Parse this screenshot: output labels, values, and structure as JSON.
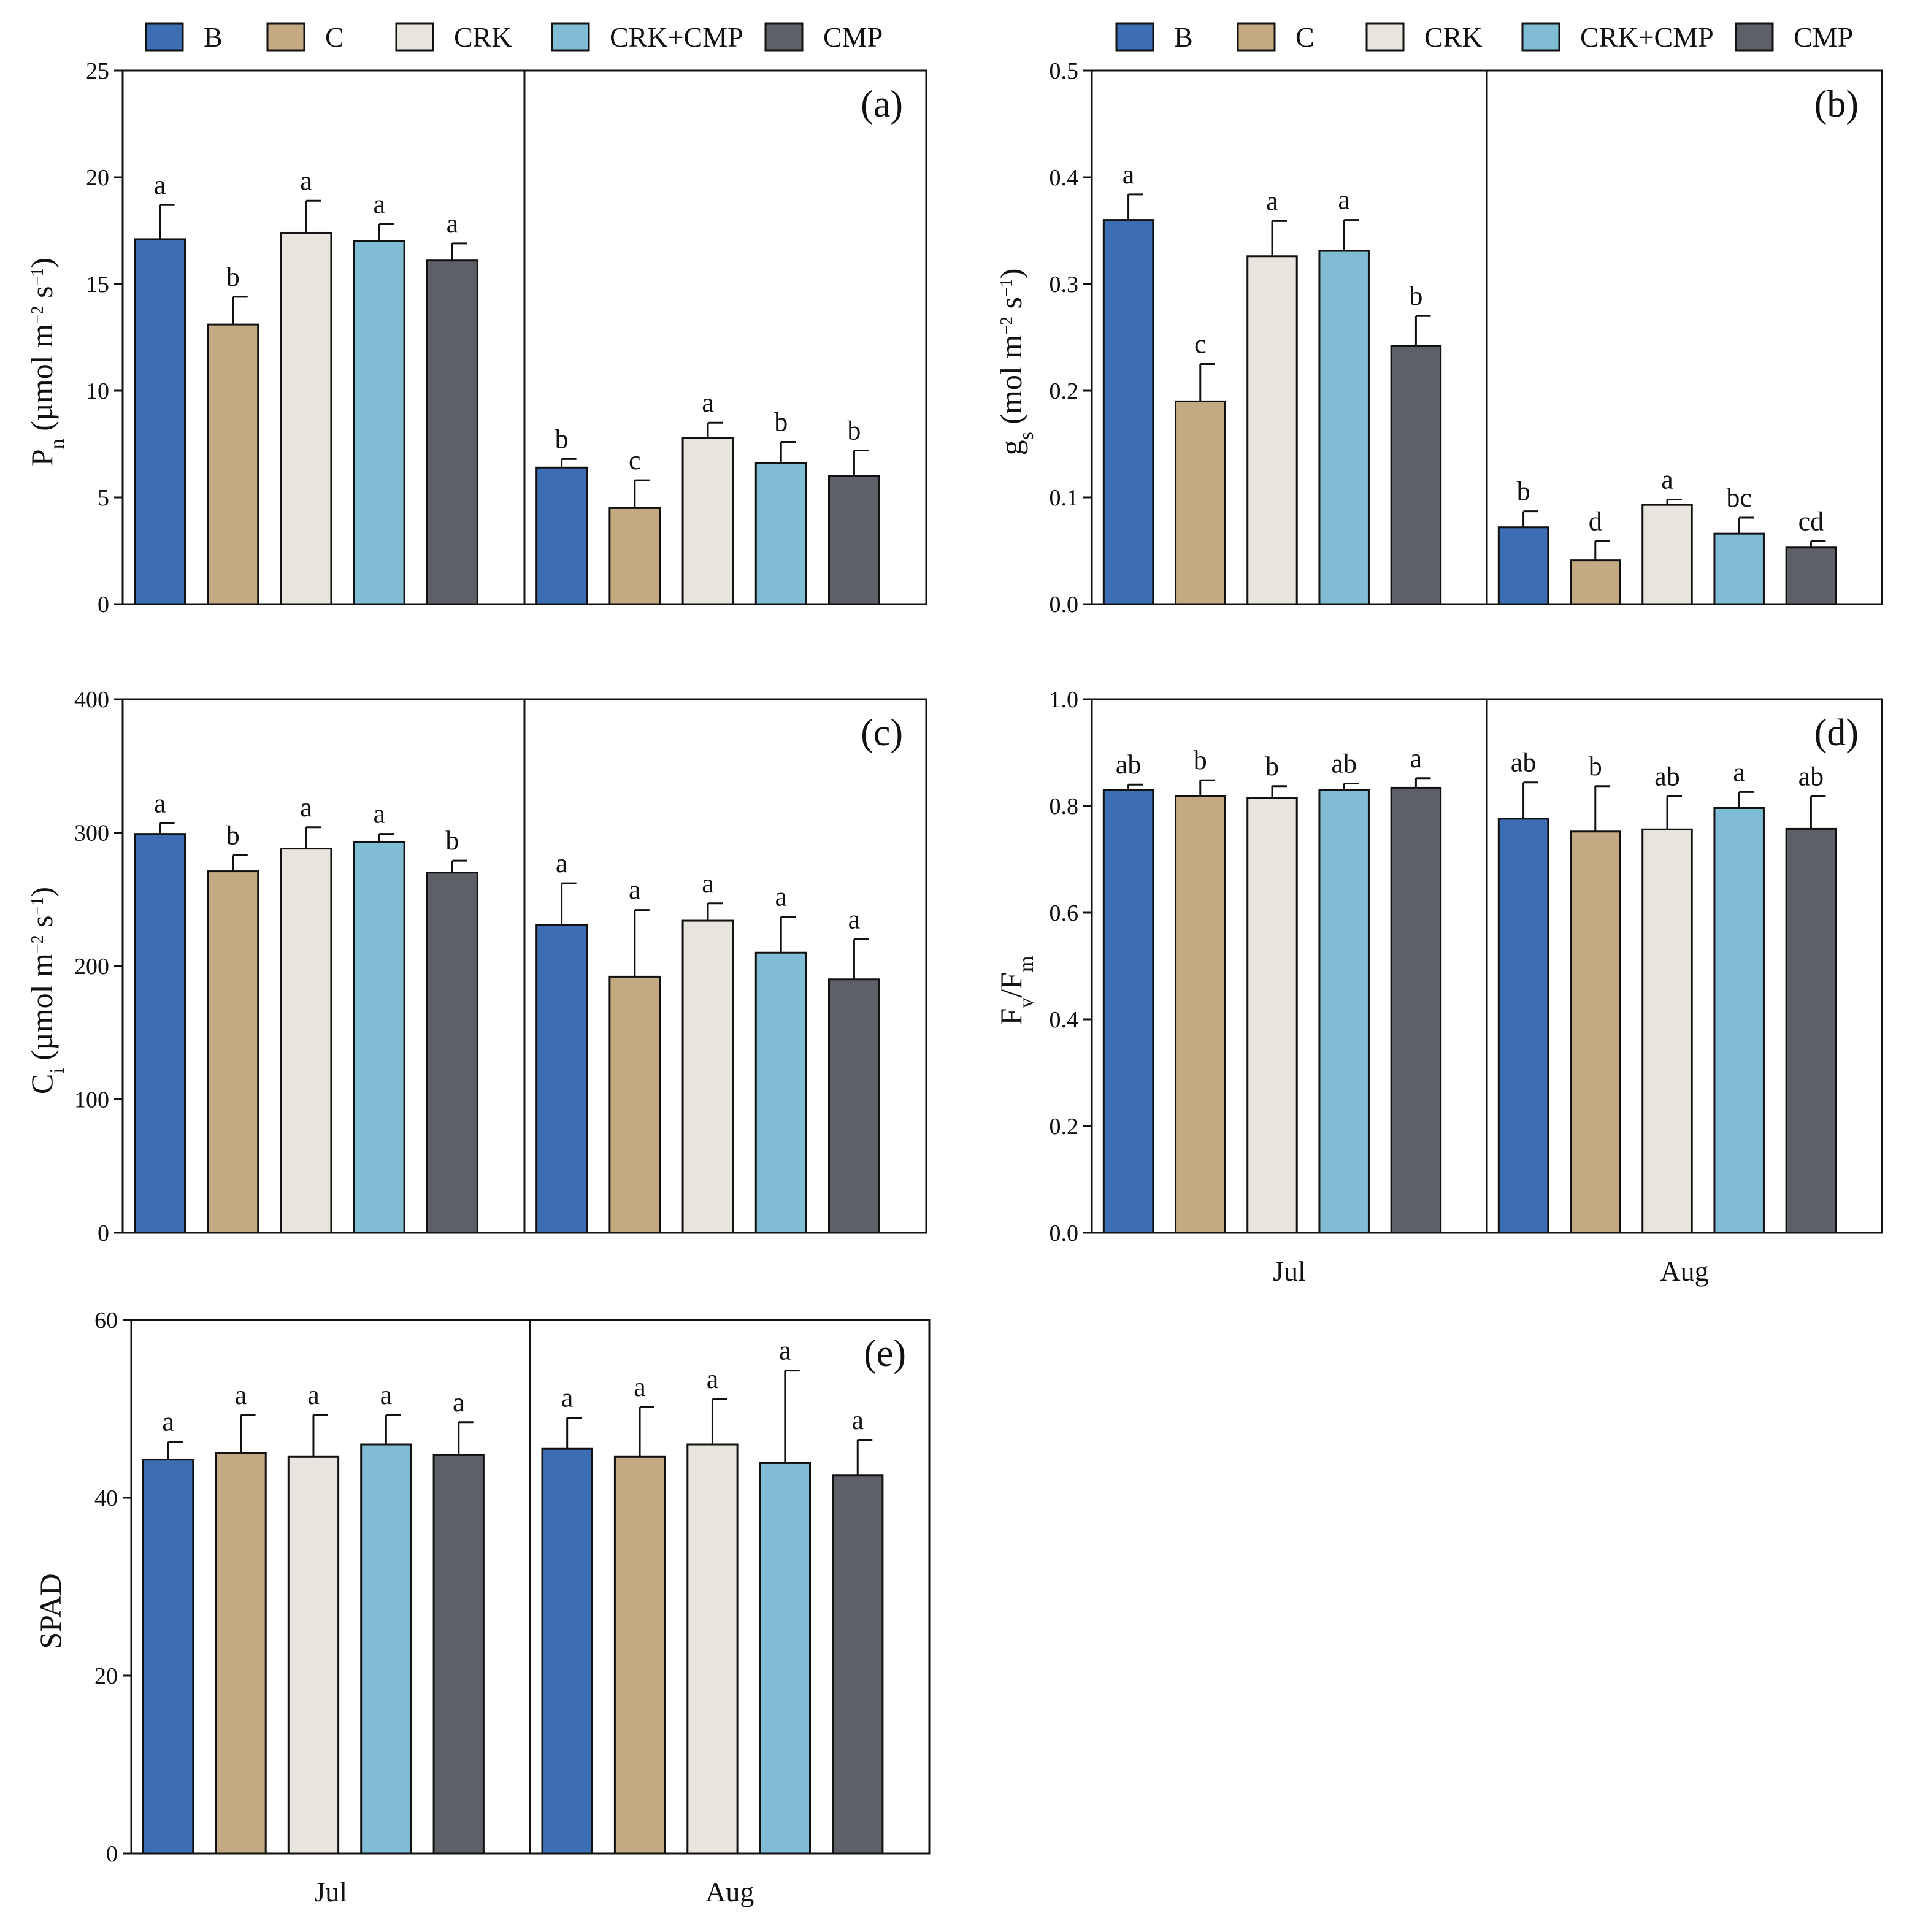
{
  "legend": {
    "items": [
      {
        "label": "B",
        "color": "#3d6db2"
      },
      {
        "label": "C",
        "color": "#c3aa82"
      },
      {
        "label": "CRK",
        "color": "#e8e4de"
      },
      {
        "label": "CRK+CMP",
        "color": "#80bcd3"
      },
      {
        "label": "CMP",
        "color": "#5d6066"
      }
    ]
  },
  "chart_data": [
    {
      "panel": "(a)",
      "type": "bar",
      "ylabel": "Pn (µmol m−2 s−1)",
      "ylabel_parts": [
        {
          "text": "P"
        },
        {
          "text": "n",
          "role": "sub"
        },
        {
          "text": " (µmol m"
        },
        {
          "text": "−2",
          "role": "sup"
        },
        {
          "text": " s"
        },
        {
          "text": "−1",
          "role": "sup"
        },
        {
          "text": ")"
        }
      ],
      "ylim": [
        0,
        25
      ],
      "yticks": [
        "0",
        "5",
        "10",
        "15",
        "20",
        "25"
      ],
      "categories": [
        "Jul",
        "Aug"
      ],
      "show_categories": false,
      "series": [
        {
          "name": "B",
          "values": [
            17.1,
            6.4
          ],
          "errors": [
            1.6,
            0.4
          ],
          "letters": [
            "a",
            "b"
          ]
        },
        {
          "name": "C",
          "values": [
            13.1,
            4.5
          ],
          "errors": [
            1.3,
            1.3
          ],
          "letters": [
            "b",
            "c"
          ]
        },
        {
          "name": "CRK",
          "values": [
            17.4,
            7.8
          ],
          "errors": [
            1.5,
            0.7
          ],
          "letters": [
            "a",
            "a"
          ]
        },
        {
          "name": "CRK+CMP",
          "values": [
            17.0,
            6.6
          ],
          "errors": [
            0.8,
            1.0
          ],
          "letters": [
            "a",
            "b"
          ]
        },
        {
          "name": "CMP",
          "values": [
            16.1,
            6.0
          ],
          "errors": [
            0.8,
            1.2
          ],
          "letters": [
            "a",
            "b"
          ]
        }
      ]
    },
    {
      "panel": "(b)",
      "type": "bar",
      "ylabel": "gs (mol m−2 s−1)",
      "ylabel_parts": [
        {
          "text": "g"
        },
        {
          "text": "s",
          "role": "sub"
        },
        {
          "text": " (mol m"
        },
        {
          "text": "−2",
          "role": "sup"
        },
        {
          "text": " s"
        },
        {
          "text": "−1",
          "role": "sup"
        },
        {
          "text": ")"
        }
      ],
      "ylim": [
        0,
        0.5
      ],
      "yticks": [
        "0.0",
        "0.1",
        "0.2",
        "0.3",
        "0.4",
        "0.5"
      ],
      "categories": [
        "Jul",
        "Aug"
      ],
      "show_categories": false,
      "series": [
        {
          "name": "B",
          "values": [
            0.36,
            0.072
          ],
          "errors": [
            0.024,
            0.015
          ],
          "letters": [
            "a",
            "b"
          ]
        },
        {
          "name": "C",
          "values": [
            0.19,
            0.041
          ],
          "errors": [
            0.035,
            0.018
          ],
          "letters": [
            "c",
            "d"
          ]
        },
        {
          "name": "CRK",
          "values": [
            0.326,
            0.093
          ],
          "errors": [
            0.033,
            0.005
          ],
          "letters": [
            "a",
            "a"
          ]
        },
        {
          "name": "CRK+CMP",
          "values": [
            0.331,
            0.066
          ],
          "errors": [
            0.029,
            0.015
          ],
          "letters": [
            "a",
            "bc"
          ]
        },
        {
          "name": "CMP",
          "values": [
            0.242,
            0.053
          ],
          "errors": [
            0.028,
            0.006
          ],
          "letters": [
            "b",
            "cd"
          ]
        }
      ]
    },
    {
      "panel": "(c)",
      "type": "bar",
      "ylabel": "Ci (µmol m−2 s−1)",
      "ylabel_parts": [
        {
          "text": "C"
        },
        {
          "text": "i",
          "role": "sub"
        },
        {
          "text": " (µmol m"
        },
        {
          "text": "−2",
          "role": "sup"
        },
        {
          "text": " s"
        },
        {
          "text": "−1",
          "role": "sup"
        },
        {
          "text": ")"
        }
      ],
      "ylim": [
        0,
        400
      ],
      "yticks": [
        "0",
        "100",
        "200",
        "300",
        "400"
      ],
      "categories": [
        "Jul",
        "Aug"
      ],
      "show_categories": false,
      "series": [
        {
          "name": "B",
          "values": [
            299,
            231
          ],
          "errors": [
            8,
            31
          ],
          "letters": [
            "a",
            "a"
          ]
        },
        {
          "name": "C",
          "values": [
            271,
            192
          ],
          "errors": [
            12,
            50
          ],
          "letters": [
            "b",
            "a"
          ]
        },
        {
          "name": "CRK",
          "values": [
            288,
            234
          ],
          "errors": [
            16,
            13
          ],
          "letters": [
            "a",
            "a"
          ]
        },
        {
          "name": "CRK+CMP",
          "values": [
            293,
            210
          ],
          "errors": [
            6,
            27
          ],
          "letters": [
            "a",
            "a"
          ]
        },
        {
          "name": "CMP",
          "values": [
            270,
            190
          ],
          "errors": [
            9,
            30
          ],
          "letters": [
            "b",
            "a"
          ]
        }
      ]
    },
    {
      "panel": "(d)",
      "type": "bar",
      "ylabel": "Fv/Fm",
      "ylabel_parts": [
        {
          "text": "F"
        },
        {
          "text": "v",
          "role": "sub"
        },
        {
          "text": "/F"
        },
        {
          "text": "m",
          "role": "sub"
        }
      ],
      "ylim": [
        0,
        1.0
      ],
      "yticks": [
        "0.0",
        "0.2",
        "0.4",
        "0.6",
        "0.8",
        "1.0"
      ],
      "categories": [
        "Jul",
        "Aug"
      ],
      "show_categories": true,
      "series": [
        {
          "name": "B",
          "values": [
            0.83,
            0.776
          ],
          "errors": [
            0.01,
            0.068
          ],
          "letters": [
            "ab",
            "ab"
          ]
        },
        {
          "name": "C",
          "values": [
            0.818,
            0.752
          ],
          "errors": [
            0.03,
            0.085
          ],
          "letters": [
            "b",
            "b"
          ]
        },
        {
          "name": "CRK",
          "values": [
            0.815,
            0.756
          ],
          "errors": [
            0.022,
            0.062
          ],
          "letters": [
            "b",
            "ab"
          ]
        },
        {
          "name": "CRK+CMP",
          "values": [
            0.83,
            0.796
          ],
          "errors": [
            0.012,
            0.03
          ],
          "letters": [
            "ab",
            "a"
          ]
        },
        {
          "name": "CMP",
          "values": [
            0.834,
            0.757
          ],
          "errors": [
            0.018,
            0.061
          ],
          "letters": [
            "a",
            "ab"
          ]
        }
      ]
    },
    {
      "panel": "(e)",
      "type": "bar",
      "ylabel": "SPAD",
      "ylabel_parts": [
        {
          "text": "SPAD"
        }
      ],
      "ylim": [
        0,
        60
      ],
      "yticks": [
        "0",
        "20",
        "40",
        "60"
      ],
      "categories": [
        "Jul",
        "Aug"
      ],
      "show_categories": true,
      "series": [
        {
          "name": "B",
          "values": [
            44.3,
            45.5
          ],
          "errors": [
            2.0,
            3.5
          ],
          "letters": [
            "a",
            "a"
          ]
        },
        {
          "name": "C",
          "values": [
            45.0,
            44.6
          ],
          "errors": [
            4.3,
            5.6
          ],
          "letters": [
            "a",
            "a"
          ]
        },
        {
          "name": "CRK",
          "values": [
            44.6,
            46.0
          ],
          "errors": [
            4.7,
            5.1
          ],
          "letters": [
            "a",
            "a"
          ]
        },
        {
          "name": "CRK+CMP",
          "values": [
            46.0,
            43.9
          ],
          "errors": [
            3.3,
            10.4
          ],
          "letters": [
            "a",
            "a"
          ]
        },
        {
          "name": "CMP",
          "values": [
            44.8,
            42.5
          ],
          "errors": [
            3.7,
            4.0
          ],
          "letters": [
            "a",
            "a"
          ]
        }
      ]
    }
  ]
}
